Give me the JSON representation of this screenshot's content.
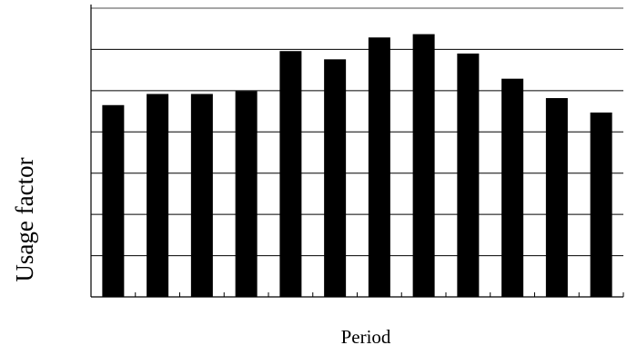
{
  "chart_data": {
    "type": "bar",
    "title": "",
    "xlabel": "Period",
    "ylabel": "Usage factor",
    "categories": [
      "",
      "",
      "",
      "",
      "",
      "",
      "",
      "",
      "",
      "",
      "",
      ""
    ],
    "values": [
      0.465,
      0.492,
      0.492,
      0.499,
      0.596,
      0.576,
      0.629,
      0.637,
      0.59,
      0.529,
      0.482,
      0.447
    ],
    "ylim": [
      0,
      0.7
    ],
    "gridlines": true,
    "y_tick_labels_shown": false,
    "bar_color": "#000000",
    "gridline_color": "#000000",
    "top_gridline_color": "#888888"
  }
}
